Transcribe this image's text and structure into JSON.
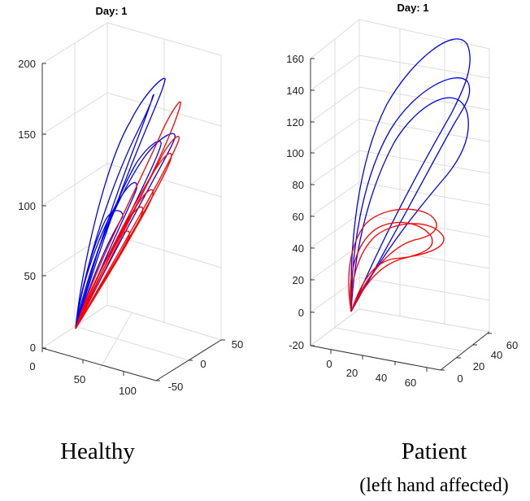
{
  "chart_data": [
    {
      "type": "line",
      "title": "Day: 1",
      "caption": "Healthy",
      "z_ticks": [
        "0",
        "50",
        "100",
        "150",
        "200"
      ],
      "x_ticks": [
        "0",
        "50",
        "100"
      ],
      "y_ticks": [
        "-50",
        "0",
        "50"
      ],
      "zlim": [
        0,
        200
      ],
      "grid": true,
      "series": [
        {
          "color": "#0000ff",
          "peaks": [
            190,
            165,
            150,
            145,
            130
          ]
        },
        {
          "color": "#ff0000",
          "peaks": [
            175,
            160,
            150,
            130,
            110,
            95
          ]
        }
      ]
    },
    {
      "type": "line",
      "title": "Day: 1",
      "caption": "Patient",
      "caption_sub": "(left hand affected)",
      "z_ticks": [
        "-20",
        "0",
        "20",
        "40",
        "60",
        "80",
        "100",
        "120",
        "140",
        "160"
      ],
      "x_ticks": [
        "0",
        "20",
        "40",
        "60"
      ],
      "y_ticks": [
        "0",
        "20",
        "40",
        "60"
      ],
      "zlim": [
        -20,
        160
      ],
      "grid": true,
      "series": [
        {
          "color": "#0000ff",
          "peaks": [
            170,
            150,
            140
          ]
        },
        {
          "color": "#ff0000",
          "peaks": [
            65,
            60,
            55
          ]
        }
      ]
    }
  ]
}
